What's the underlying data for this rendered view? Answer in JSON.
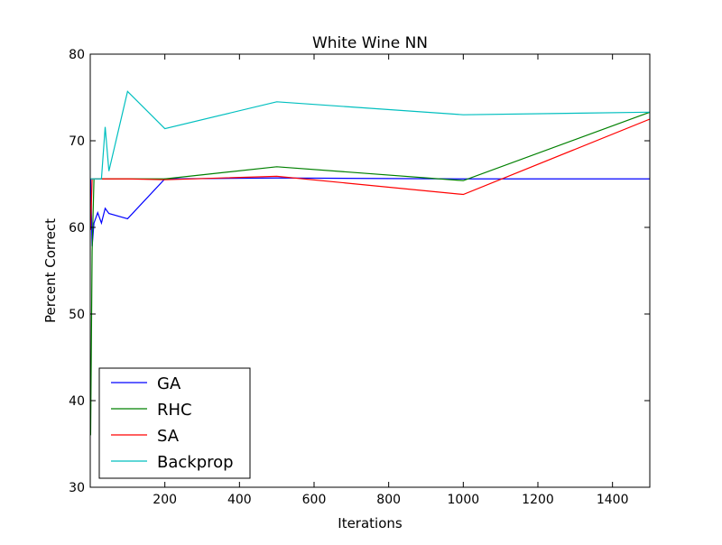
{
  "chart_data": {
    "type": "line",
    "title": "White Wine NN",
    "xlabel": "Iterations",
    "ylabel": "Percent Correct",
    "xlim": [
      0,
      1500
    ],
    "ylim": [
      30,
      80
    ],
    "x_ticks": [
      200,
      400,
      600,
      800,
      1000,
      1200,
      1400
    ],
    "y_ticks": [
      30,
      40,
      50,
      60,
      70,
      80
    ],
    "grid": false,
    "legend_position": "lower-left",
    "series": [
      {
        "name": "GA",
        "color": "#0000ff",
        "x": [
          1,
          5,
          10,
          20,
          30,
          40,
          50,
          100,
          200,
          500,
          1000,
          1500
        ],
        "y": [
          65.6,
          57.8,
          60.5,
          61.7,
          60.5,
          62.2,
          61.6,
          61.0,
          65.6,
          65.7,
          65.6,
          65.6
        ]
      },
      {
        "name": "RHC",
        "color": "#008000",
        "x": [
          1,
          5,
          10,
          20,
          50,
          100,
          200,
          500,
          1000,
          1500
        ],
        "y": [
          36.0,
          57.2,
          65.6,
          65.6,
          65.6,
          65.6,
          65.6,
          67.0,
          65.4,
          73.3
        ]
      },
      {
        "name": "SA",
        "color": "#ff0000",
        "x": [
          1,
          5,
          10,
          20,
          50,
          100,
          200,
          500,
          1000,
          1500
        ],
        "y": [
          59.7,
          65.6,
          65.6,
          65.6,
          65.6,
          65.6,
          65.5,
          65.9,
          63.8,
          72.5
        ]
      },
      {
        "name": "Backprop",
        "color": "#00bfbf",
        "x": [
          1,
          5,
          10,
          20,
          30,
          40,
          50,
          100,
          200,
          500,
          1000,
          1500
        ],
        "y": [
          65.6,
          65.6,
          65.6,
          65.6,
          65.6,
          71.6,
          66.5,
          75.7,
          71.4,
          74.5,
          73.0,
          73.3
        ]
      }
    ]
  }
}
